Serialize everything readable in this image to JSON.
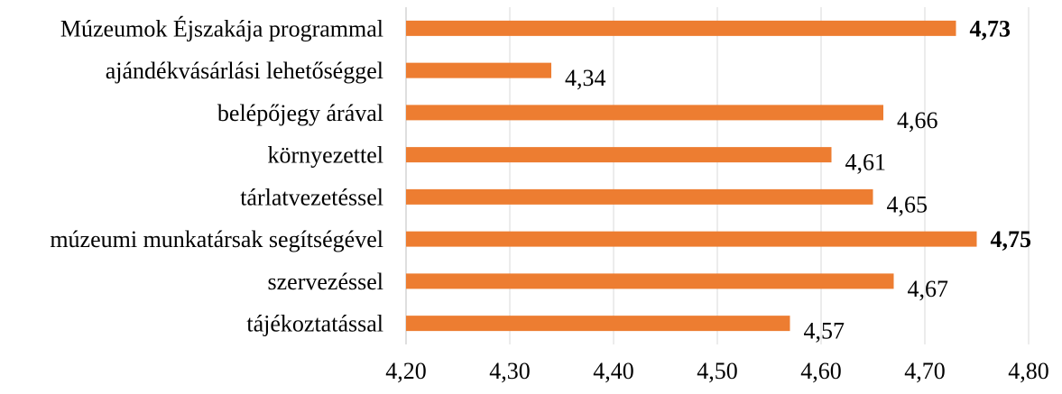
{
  "chart_data": {
    "type": "bar",
    "orientation": "horizontal",
    "categories": [
      "Múzeumok Éjszakája programmal",
      "ajándékvásárlási lehetőséggel",
      "belépőjegy árával",
      "környezettel",
      "tárlatvezetéssel",
      "múzeumi munkatársak segítségével",
      "szervezéssel",
      "tájékoztatással"
    ],
    "values": [
      4.73,
      4.34,
      4.66,
      4.61,
      4.65,
      4.75,
      4.67,
      4.57
    ],
    "value_labels": [
      "4,73",
      "4,34",
      "4,66",
      "4,61",
      "4,65",
      "4,75",
      "4,67",
      "4,57"
    ],
    "bold_value_labels": [
      true,
      false,
      false,
      false,
      false,
      true,
      false,
      false
    ],
    "xlim": [
      4.2,
      4.8
    ],
    "x_ticks": [
      4.2,
      4.3,
      4.4,
      4.5,
      4.6,
      4.7,
      4.8
    ],
    "x_tick_labels": [
      "4,20",
      "4,30",
      "4,40",
      "4,50",
      "4,60",
      "4,70",
      "4,80"
    ],
    "grid": "vertical",
    "legend": "none",
    "colors": {
      "bar": "#ED7D31",
      "grid": "#D9D9D9",
      "axis": "#BFBFBF",
      "text": "#000000"
    }
  }
}
